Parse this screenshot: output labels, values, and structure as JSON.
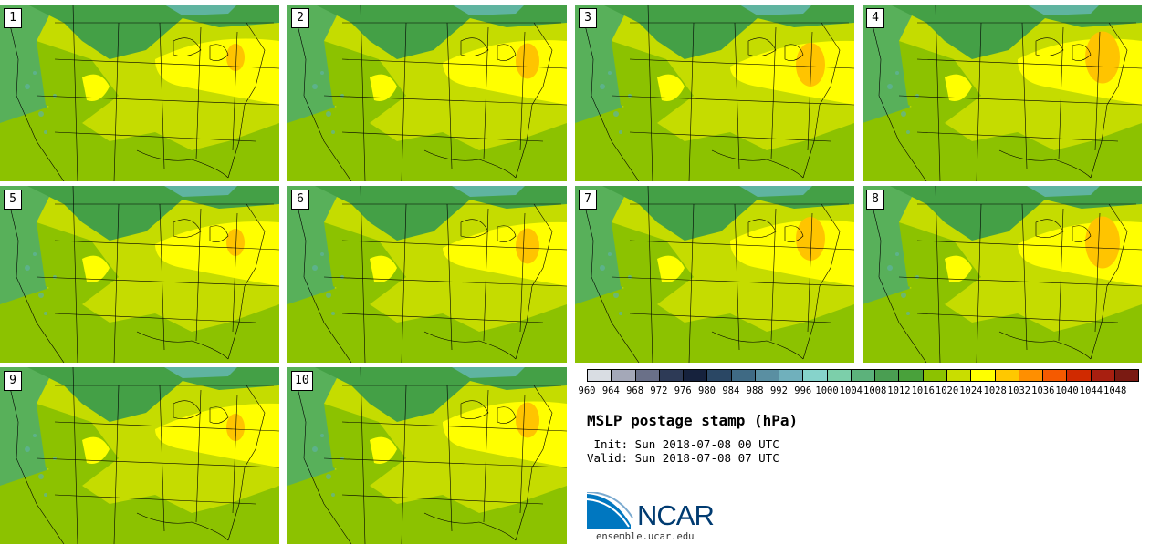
{
  "stamps": [
    {
      "label": "1"
    },
    {
      "label": "2"
    },
    {
      "label": "3"
    },
    {
      "label": "4"
    },
    {
      "label": "5"
    },
    {
      "label": "6"
    },
    {
      "label": "7"
    },
    {
      "label": "8"
    },
    {
      "label": "9"
    },
    {
      "label": "10"
    }
  ],
  "colorbar": {
    "levels": [
      "960",
      "964",
      "968",
      "972",
      "976",
      "980",
      "984",
      "988",
      "992",
      "996",
      "1000",
      "1004",
      "1008",
      "1012",
      "1016",
      "1020",
      "1024",
      "1028",
      "1032",
      "1036",
      "1040",
      "1044",
      "1048"
    ],
    "colors": [
      "#d9dde3",
      "#a4a8b8",
      "#6a7088",
      "#2d3a56",
      "#16223d",
      "#2a4764",
      "#3f6a84",
      "#5a8fa2",
      "#70b0bc",
      "#86d3cb",
      "#7ccfaa",
      "#5cb27b",
      "#4a9e52",
      "#49a13b",
      "#8cc200",
      "#c9dd00",
      "#ffff00",
      "#ffc800",
      "#ff8f00",
      "#f55a00",
      "#d02a00",
      "#a81f10",
      "#7a1a12"
    ]
  },
  "title": "MSLP postage stamp (hPa)",
  "init": " Init: Sun 2018-07-08 00 UTC",
  "valid": "Valid: Sun 2018-07-08 07 UTC",
  "logo_text": "NCAR",
  "url": "ensemble.ucar.edu",
  "map_colors": {
    "ocean_green": "#58b05a",
    "dark_green": "#44a046",
    "mid_green": "#8cc200",
    "light_green": "#c5dc00",
    "yellow": "#ffff00",
    "orange": "#ffc400",
    "teal": "#5fb4a0"
  }
}
